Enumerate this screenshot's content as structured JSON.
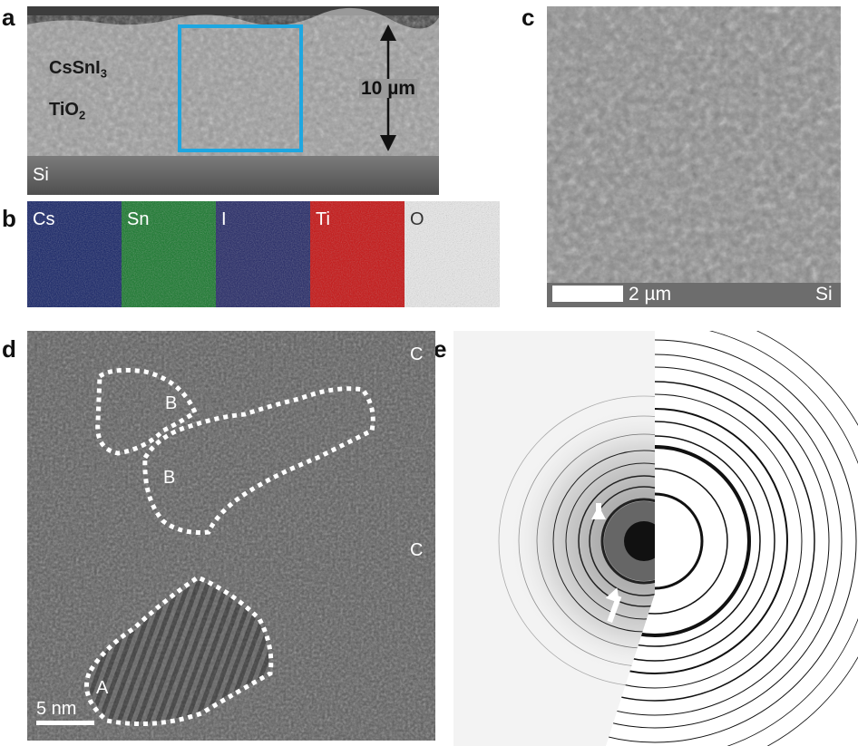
{
  "panels": {
    "a": {
      "letter": "a",
      "label_perovskite": "CsSnI",
      "label_perovskite_sub": "3",
      "label_oxide": "TiO",
      "label_oxide_sub": "2",
      "label_substrate": "Si",
      "thickness": "10 µm",
      "colors": {
        "box": "#1ea7e1",
        "film": "#8c8c8c",
        "substrate": "#555555"
      }
    },
    "b": {
      "letter": "b",
      "maps": [
        {
          "element": "Cs",
          "color": "#2b3d8f"
        },
        {
          "element": "Sn",
          "color": "#2f8a3c"
        },
        {
          "element": "I",
          "color": "#3a3f7a"
        },
        {
          "element": "Ti",
          "color": "#cc1f1f"
        },
        {
          "element": "O",
          "color": "#e6e6e6"
        }
      ]
    },
    "c": {
      "letter": "c",
      "scale": "2 µm",
      "substrate": "Si"
    },
    "d": {
      "letter": "d",
      "regions": [
        "B",
        "B",
        "A"
      ],
      "labels_c": [
        "C",
        "C"
      ],
      "scale": "5 nm"
    },
    "e": {
      "letter": "e"
    }
  }
}
